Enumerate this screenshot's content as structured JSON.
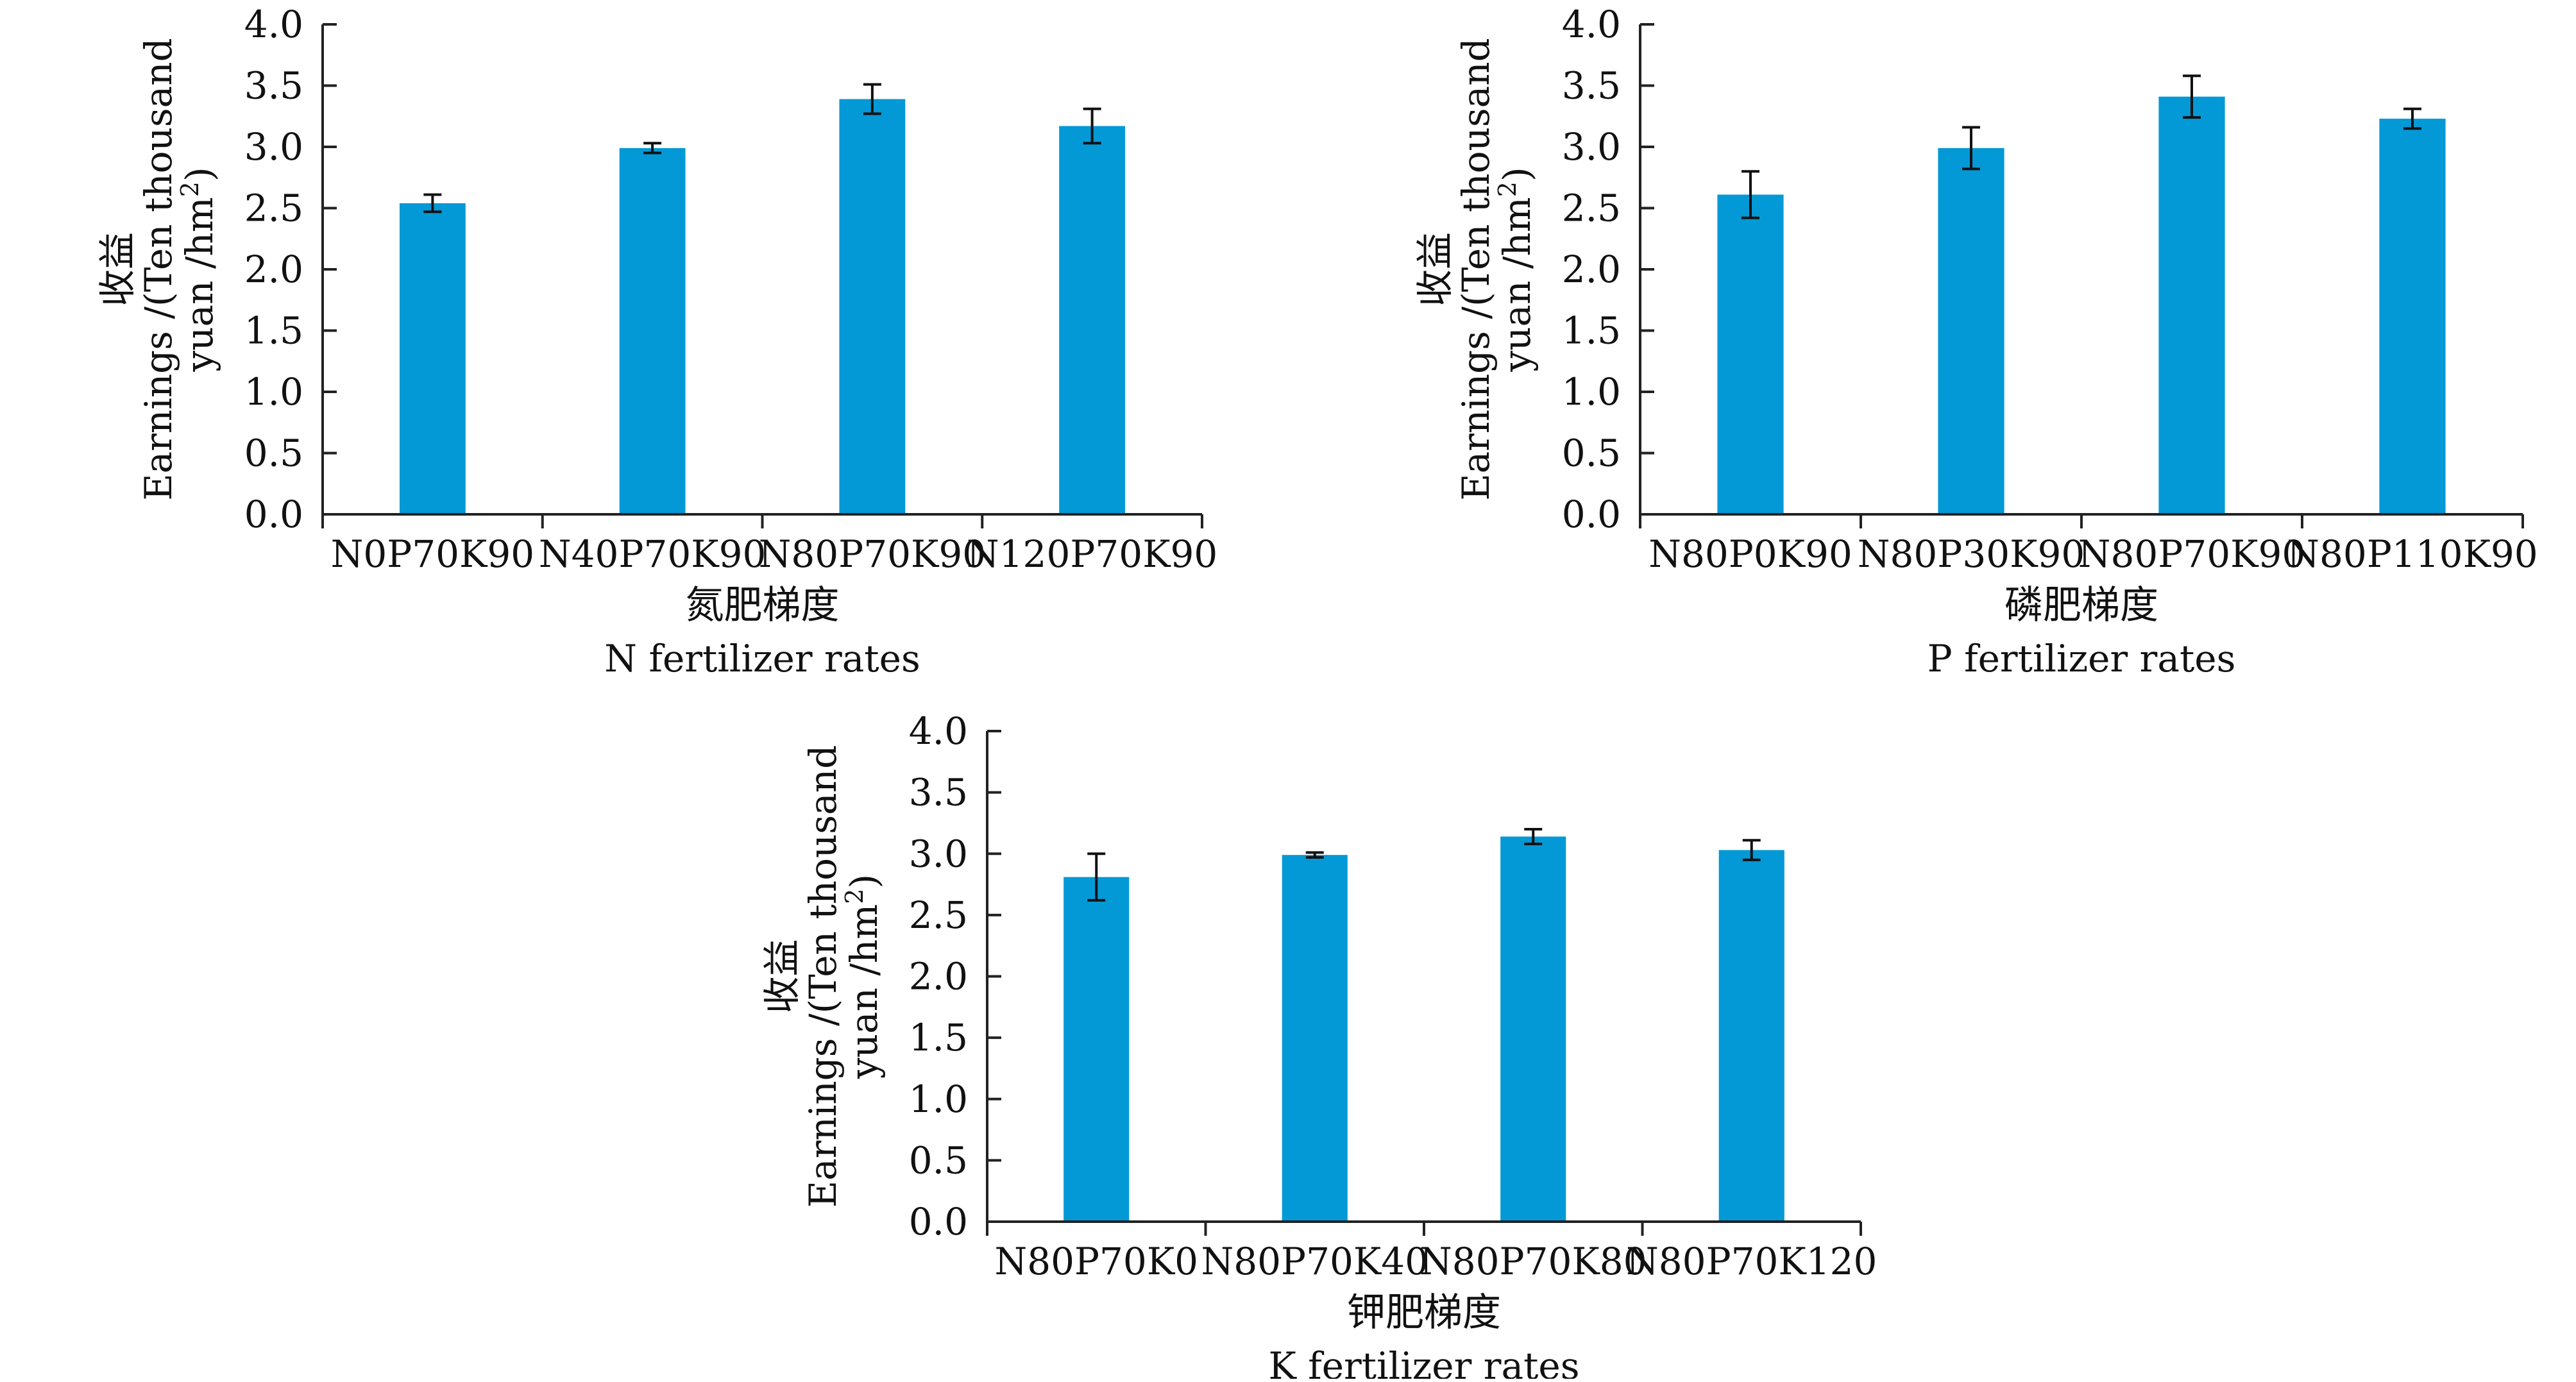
{
  "chart_data": [
    {
      "type": "bar",
      "categories": [
        "N0P70K90",
        "N40P70K90",
        "N80P70K90",
        "N120P70K90"
      ],
      "values": [
        2.54,
        2.99,
        3.39,
        3.17
      ],
      "error": [
        0.07,
        0.04,
        0.12,
        0.14
      ],
      "ylabel_cn": "收益",
      "ylabel_en_1": "Earnings /(Ten thousand",
      "ylabel_en_2": "yuan /hm",
      "ylabel_sup": "2",
      "ylabel_end": ")",
      "xlabel_cn": "氮肥梯度",
      "xlabel_en": "N fertilizer rates",
      "ylim": [
        0,
        4
      ],
      "yticks": [
        "0.0",
        "0.5",
        "1.0",
        "1.5",
        "2.0",
        "2.5",
        "3.0",
        "3.5",
        "4.0"
      ],
      "color": "#0399d7",
      "grid": false
    },
    {
      "type": "bar",
      "categories": [
        "N80P0K90",
        "N80P30K90",
        "N80P70K90",
        "N80P110K90"
      ],
      "values": [
        2.61,
        2.99,
        3.41,
        3.23
      ],
      "error": [
        0.19,
        0.17,
        0.17,
        0.08
      ],
      "ylabel_cn": "收益",
      "ylabel_en_1": "Earnings /(Ten thousand",
      "ylabel_en_2": "yuan /hm",
      "ylabel_sup": "2",
      "ylabel_end": ")",
      "xlabel_cn": "磷肥梯度",
      "xlabel_en": "P fertilizer rates",
      "ylim": [
        0,
        4
      ],
      "yticks": [
        "0.0",
        "0.5",
        "1.0",
        "1.5",
        "2.0",
        "2.5",
        "3.0",
        "3.5",
        "4.0"
      ],
      "color": "#0399d7",
      "grid": false
    },
    {
      "type": "bar",
      "categories": [
        "N80P70K0",
        "N80P70K40",
        "N80P70K80",
        "N80P70K120"
      ],
      "values": [
        2.81,
        2.99,
        3.14,
        3.03
      ],
      "error": [
        0.19,
        0.02,
        0.06,
        0.08
      ],
      "ylabel_cn": "收益",
      "ylabel_en_1": "Earnings /(Ten thousand",
      "ylabel_en_2": "yuan /hm",
      "ylabel_sup": "2",
      "ylabel_end": ")",
      "xlabel_cn": "钾肥梯度",
      "xlabel_en": "K fertilizer rates",
      "ylim": [
        0,
        4
      ],
      "yticks": [
        "0.0",
        "0.5",
        "1.0",
        "1.5",
        "2.0",
        "2.5",
        "3.0",
        "3.5",
        "4.0"
      ],
      "color": "#0399d7",
      "grid": false
    }
  ]
}
